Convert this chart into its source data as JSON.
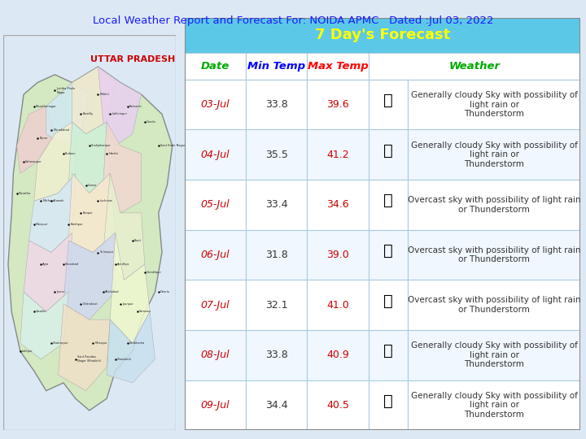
{
  "title": "Local Weather Report and Forecast For: NOIDA APMC   Dated :Jul 03, 2022",
  "title_color": "#1a1aff",
  "title_highlight": "NOIDA APMC",
  "forecast_header": "7 Day's Forecast",
  "bg_color": "#dce9f5",
  "header_bg": "#5bc8e8",
  "header_fg": "#ffff00",
  "col_headers": [
    "Date",
    "Min Temp",
    "Max Temp",
    "Weather"
  ],
  "col_header_colors": [
    "#00aa00",
    "#0000ff",
    "#ff0000",
    "#00aa00"
  ],
  "rows": [
    {
      "date": "03-Jul",
      "min": "33.8",
      "max": "39.6",
      "desc": "Generally cloudy Sky with possibility of light rain or\nThunderstorm"
    },
    {
      "date": "04-Jul",
      "min": "35.5",
      "max": "41.2",
      "desc": "Generally cloudy Sky with possibility of light rain or\nThunderstorm"
    },
    {
      "date": "05-Jul",
      "min": "33.4",
      "max": "34.6",
      "desc": "Overcast sky with possibility of light rain or Thunderstorm"
    },
    {
      "date": "06-Jul",
      "min": "31.8",
      "max": "39.0",
      "desc": "Overcast sky with possibility of light rain or Thunderstorm"
    },
    {
      "date": "07-Jul",
      "min": "32.1",
      "max": "41.0",
      "desc": "Overcast sky with possibility of light rain or Thunderstorm"
    },
    {
      "date": "08-Jul",
      "min": "33.8",
      "max": "40.9",
      "desc": "Generally cloudy Sky with possibility of light rain or\nThunderstorm"
    },
    {
      "date": "09-Jul",
      "min": "34.4",
      "max": "40.5",
      "desc": "Generally cloudy Sky with possibility of light rain or\nThunderstorm"
    }
  ],
  "date_color": "#cc0000",
  "min_color": "#333333",
  "max_color": "#cc0000",
  "desc_color": "#333333",
  "row_bg_even": "#ffffff",
  "row_bg_odd": "#f0f7ff",
  "grid_color": "#aaccdd",
  "map_label": "UTTAR PRADESH",
  "map_label_color": "#cc0000"
}
